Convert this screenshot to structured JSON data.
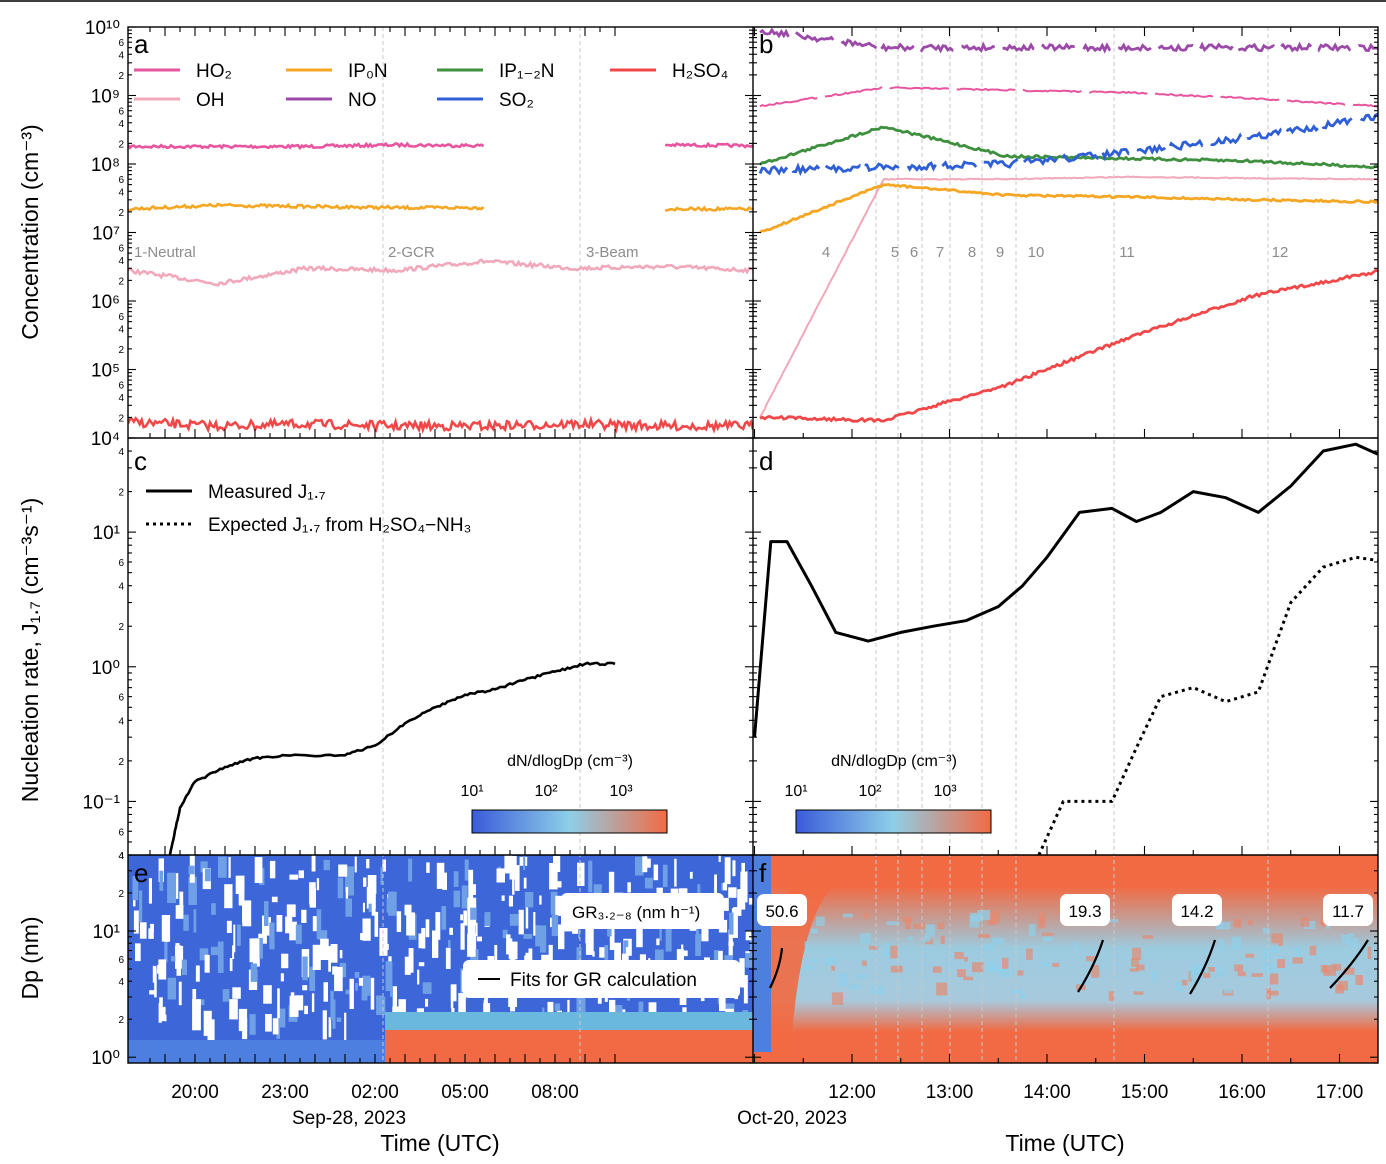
{
  "figure": {
    "panel_labels": [
      "a",
      "b",
      "c",
      "d",
      "e",
      "f"
    ],
    "y_axes": {
      "concentration": "Concentration (cm⁻³)",
      "nucleation": "Nucleation rate, J₁.₇ (cm⁻³s⁻¹)",
      "dp": "Dp (nm)"
    },
    "x_axes": {
      "left": {
        "label": "Time (UTC)",
        "date": "Sep-28, 2023",
        "ticks": [
          "20:00",
          "23:00",
          "02:00",
          "05:00",
          "08:00"
        ]
      },
      "right": {
        "label": "Time (UTC)",
        "date": "Oct-20, 2023",
        "ticks": [
          "12:00",
          "13:00",
          "14:00",
          "15:00",
          "16:00",
          "17:00"
        ]
      }
    },
    "colorbar": {
      "label": "dN/dlogDp (cm⁻³)",
      "ticks": [
        "10¹",
        "10²",
        "10³"
      ],
      "colors": [
        "#3a5bd9",
        "#8ecfe8",
        "#f26a43"
      ]
    },
    "colors": {
      "HO2": "#e8559f",
      "OH": "#f0a8ba",
      "IP0N": "#f5a623",
      "NO": "#9b4aa8",
      "IP12N": "#3e8f3e",
      "SO2": "#2f5fd6",
      "H2SO4": "#f04848"
    }
  },
  "chart_data": [
    {
      "panel": "a",
      "type": "line",
      "yscale": "log",
      "ylim": [
        10000,
        10000000000
      ],
      "ytick_labels": [
        "10⁴",
        "10⁵",
        "10⁶",
        "10⁷",
        "10⁸",
        "10⁹",
        "10¹⁰"
      ],
      "legend": [
        "HO₂",
        "OH",
        "IP₀N",
        "NO",
        "IP₁₋₂N",
        "SO₂",
        "H₂SO₄"
      ],
      "regions": [
        "1-Neutral",
        "2-GCR",
        "3-Beam"
      ],
      "x_range": [
        "Sep-28 18:30",
        "Sep-29 10:00"
      ],
      "series": [
        {
          "name": "HO₂",
          "values": [
            180000000,
            180000000,
            180000000,
            190000000,
            185000000,
            null,
            190000000,
            185000000
          ]
        },
        {
          "name": "OH",
          "values": [
            2800000,
            1800000,
            3000000,
            2800000,
            3800000,
            3000000,
            3200000,
            2800000
          ]
        },
        {
          "name": "IP₀N",
          "values": [
            22000000,
            25000000,
            24000000,
            23000000,
            23000000,
            null,
            22000000,
            22000000
          ]
        },
        {
          "name": "H₂SO₄",
          "values": [
            17000,
            15000,
            16000,
            15000,
            15000,
            16000,
            15000,
            15000
          ]
        }
      ]
    },
    {
      "panel": "b",
      "type": "line",
      "yscale": "log",
      "ylim": [
        10000,
        10000000000
      ],
      "regions": [
        "4",
        "5",
        "6",
        "7",
        "8",
        "9",
        "10",
        "11",
        "12"
      ],
      "x_range": [
        "Oct-20 11:00",
        "Oct-20 17:30"
      ],
      "series": [
        {
          "name": "NO",
          "values": [
            9000000000,
            5000000000,
            5000000000,
            5000000000,
            5000000000,
            5000000000
          ]
        },
        {
          "name": "HO₂",
          "values": [
            700000000,
            1300000000,
            1200000000,
            1100000000,
            900000000,
            700000000
          ]
        },
        {
          "name": "IP₁₋₂N",
          "values": [
            100000000,
            350000000,
            130000000,
            120000000,
            110000000,
            90000000
          ]
        },
        {
          "name": "SO₂",
          "values": [
            80000000,
            90000000,
            100000000,
            150000000,
            250000000,
            500000000
          ]
        },
        {
          "name": "OH",
          "values": [
            20000,
            60000000,
            60000000,
            65000000,
            62000000,
            60000000
          ]
        },
        {
          "name": "IP₀N",
          "values": [
            10000000,
            50000000,
            35000000,
            33000000,
            30000000,
            28000000
          ]
        },
        {
          "name": "H₂SO₄",
          "values": [
            20000,
            18000,
            60000,
            300000,
            1200000,
            2700000
          ]
        }
      ]
    },
    {
      "panel": "c",
      "type": "line",
      "yscale": "log",
      "ylim": [
        0.04,
        50
      ],
      "ytick_labels": [
        "10⁻¹",
        "10⁰",
        "10¹"
      ],
      "legend": [
        "Measured J₁.₇",
        "Expected J₁.₇ from H₂SO₄−NH₃"
      ],
      "series": [
        {
          "name": "Measured J₁.₇",
          "x": [
            "19:10",
            "19:30",
            "20:00",
            "21:00",
            "22:00",
            "23:00",
            "01:00",
            "02:00",
            "03:00",
            "04:00",
            "05:00",
            "06:00",
            "07:00",
            "08:00",
            "09:00",
            "10:00"
          ],
          "values": [
            0.04,
            0.09,
            0.14,
            0.18,
            0.21,
            0.22,
            0.22,
            0.26,
            0.38,
            0.5,
            0.62,
            0.68,
            0.8,
            0.92,
            1.05,
            1.05
          ]
        }
      ]
    },
    {
      "panel": "d",
      "type": "line",
      "yscale": "log",
      "ylim": [
        0.04,
        50
      ],
      "series": [
        {
          "name": "Measured J₁.₇",
          "x": [
            "11:00",
            "11:10",
            "11:20",
            "11:35",
            "11:50",
            "12:10",
            "12:30",
            "12:50",
            "13:10",
            "13:30",
            "13:45",
            "14:00",
            "14:20",
            "14:40",
            "14:55",
            "15:10",
            "15:30",
            "15:50",
            "16:10",
            "16:30",
            "16:50",
            "17:10",
            "17:30"
          ],
          "values": [
            0.3,
            8.5,
            8.5,
            4,
            1.8,
            1.55,
            1.8,
            2,
            2.2,
            2.8,
            4,
            6.5,
            14,
            15,
            12,
            14,
            20,
            18,
            14,
            22,
            40,
            45,
            35
          ]
        },
        {
          "name": "Expected J₁.₇ from H₂SO₄−NH₃",
          "x": [
            "13:55",
            "14:10",
            "14:40",
            "14:55",
            "15:10",
            "15:30",
            "15:50",
            "16:10",
            "16:30",
            "16:50",
            "17:10",
            "17:30"
          ],
          "values": [
            0.04,
            0.1,
            0.1,
            0.25,
            0.6,
            0.7,
            0.55,
            0.65,
            3,
            5.5,
            6.5,
            6
          ]
        }
      ]
    },
    {
      "panel": "e",
      "type": "heatmap",
      "yscale": "log",
      "ylim": [
        0.9,
        40
      ],
      "ytick_labels": [
        "10⁰",
        "10¹"
      ],
      "gr_label": "GR₃.₂₋₈ (nm h⁻¹)",
      "fit_legend": "Fits for GR calculation"
    },
    {
      "panel": "f",
      "type": "heatmap",
      "yscale": "log",
      "ylim": [
        0.9,
        40
      ],
      "growth_rates": [
        "50.6",
        "19.3",
        "14.2",
        "11.7"
      ]
    }
  ]
}
